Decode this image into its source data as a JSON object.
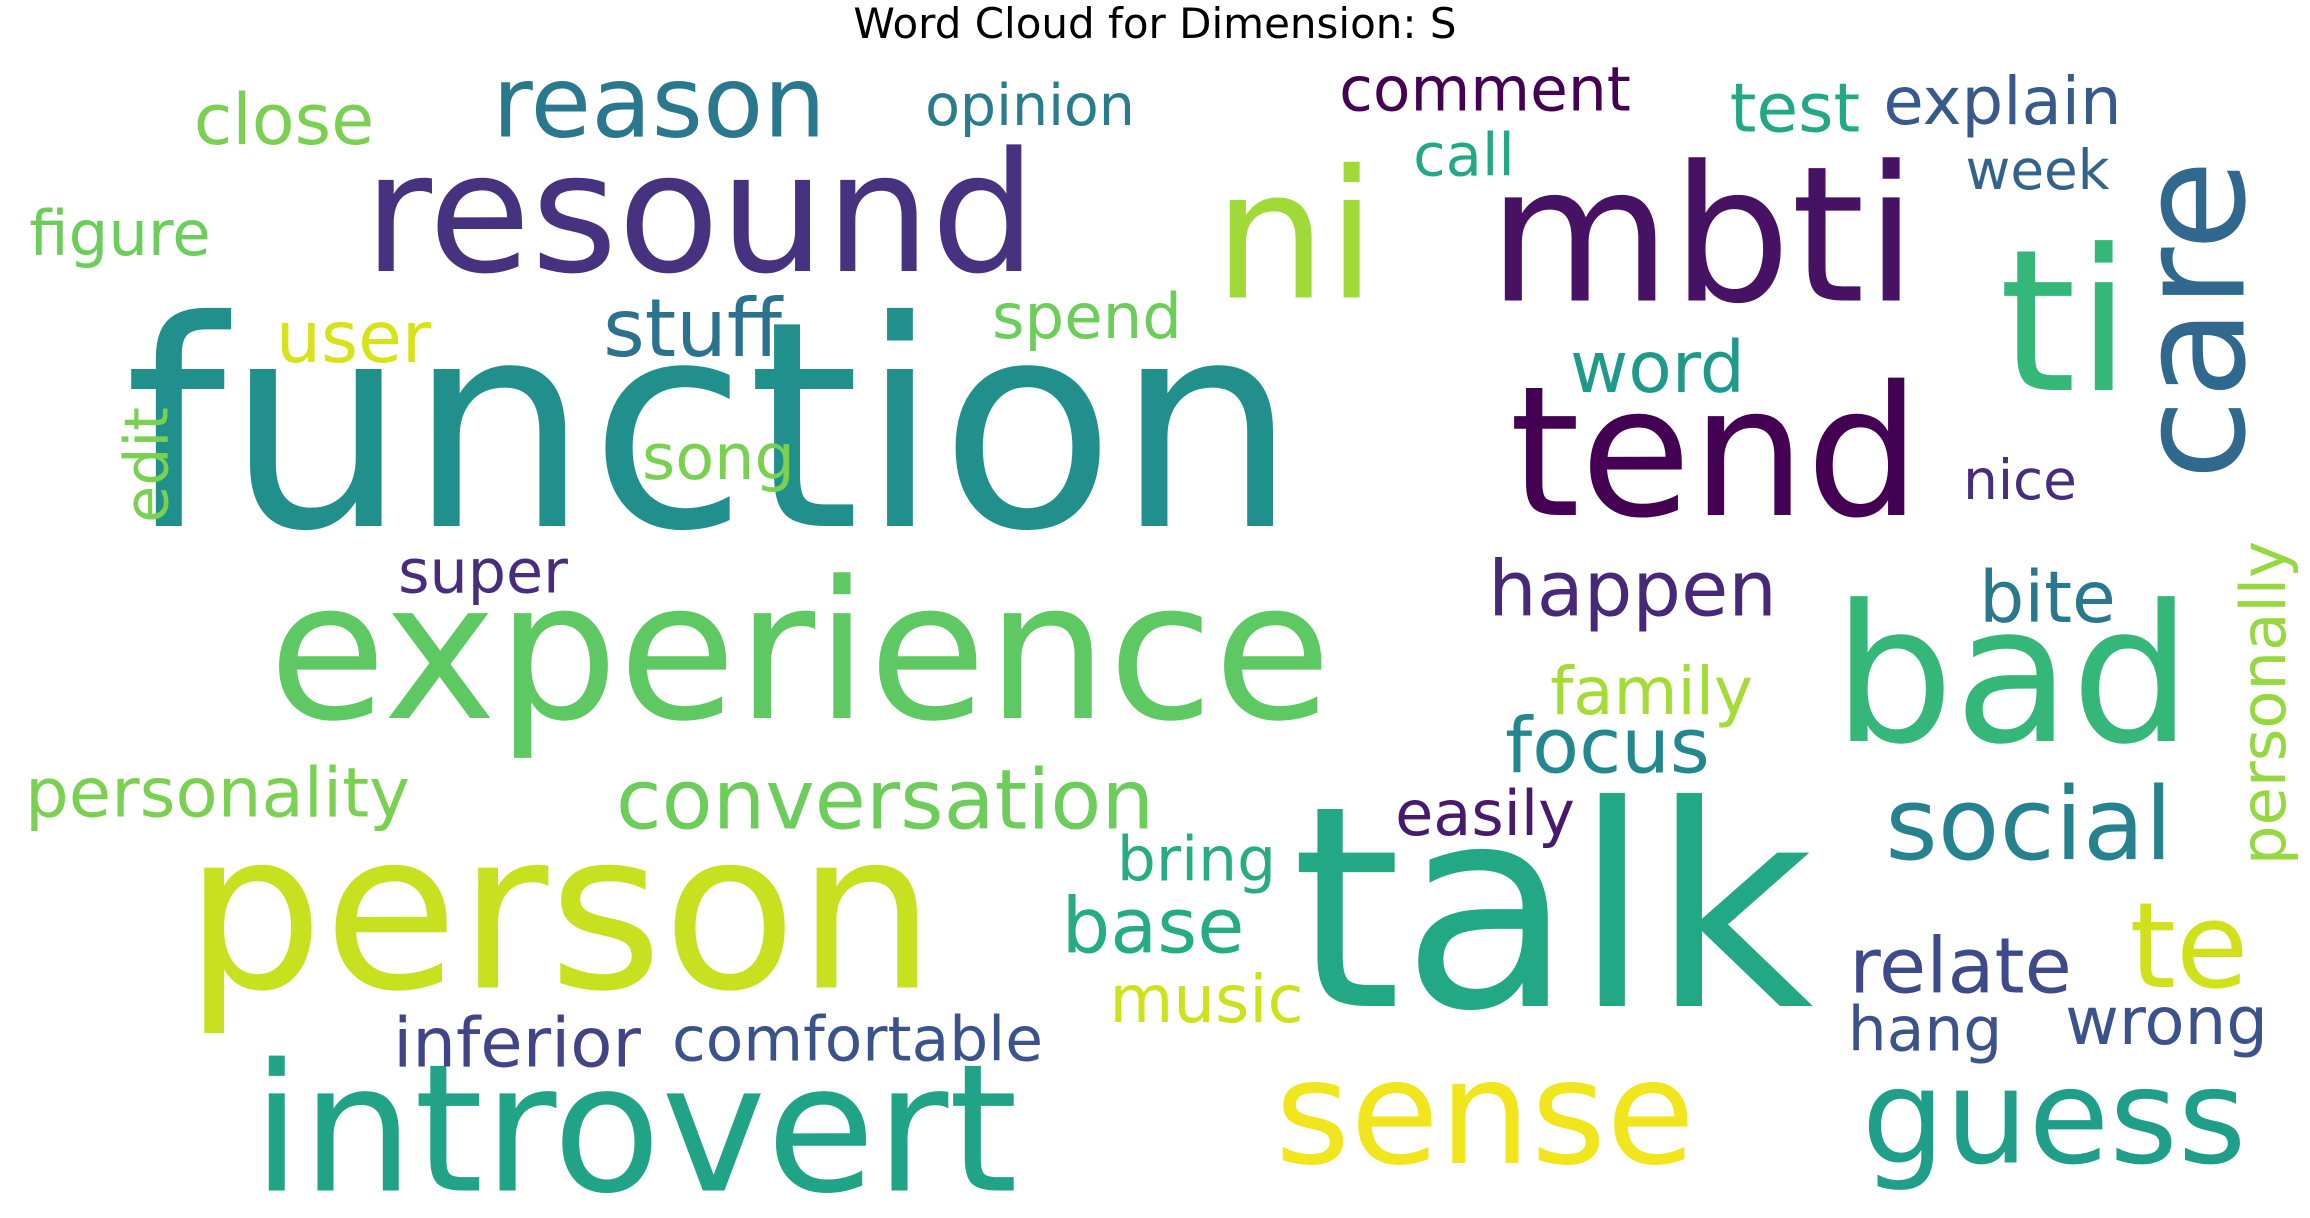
{
  "title": "Word Cloud for Dimension: S",
  "words": [
    {
      "text": "function",
      "color": "#21908d"
    },
    {
      "text": "person",
      "color": "#c7e020"
    },
    {
      "text": "talk",
      "color": "#22a884"
    },
    {
      "text": "experience",
      "color": "#5ec962"
    },
    {
      "text": "introvert",
      "color": "#20a386"
    },
    {
      "text": "resound",
      "color": "#46327e"
    },
    {
      "text": "sense",
      "color": "#f1e51d"
    },
    {
      "text": "mbti",
      "color": "#471164"
    },
    {
      "text": "bad",
      "color": "#35b779"
    },
    {
      "text": "tend",
      "color": "#440154"
    },
    {
      "text": "guess",
      "color": "#1f9e89"
    },
    {
      "text": "ni",
      "color": "#a0da39"
    },
    {
      "text": "care",
      "color": "#31688e"
    },
    {
      "text": "ti",
      "color": "#35b779"
    },
    {
      "text": "reason",
      "color": "#2a788e"
    },
    {
      "text": "social",
      "color": "#26828e"
    },
    {
      "text": "te",
      "color": "#d0e11c"
    },
    {
      "text": "conversation",
      "color": "#6ccd5a"
    },
    {
      "text": "happen",
      "color": "#482878"
    },
    {
      "text": "stuff",
      "color": "#2c728e"
    },
    {
      "text": "focus",
      "color": "#23888e"
    },
    {
      "text": "test",
      "color": "#22a884"
    },
    {
      "text": "close",
      "color": "#7ad151"
    },
    {
      "text": "word",
      "color": "#1f9a8a"
    },
    {
      "text": "relate",
      "color": "#3e4a89"
    },
    {
      "text": "wrong",
      "color": "#3b528b"
    },
    {
      "text": "personality",
      "color": "#7ad151"
    },
    {
      "text": "opinion",
      "color": "#297b8e"
    },
    {
      "text": "comment",
      "color": "#440154"
    },
    {
      "text": "explain",
      "color": "#38598c"
    },
    {
      "text": "bite",
      "color": "#2a788e"
    },
    {
      "text": "base",
      "color": "#25ac82"
    },
    {
      "text": "user",
      "color": "#d8e219"
    },
    {
      "text": "comfortable",
      "color": "#3b528b"
    },
    {
      "text": "inferior",
      "color": "#414487"
    },
    {
      "text": "family",
      "color": "#a5db36"
    },
    {
      "text": "personally",
      "color": "#95d840"
    },
    {
      "text": "spend",
      "color": "#6ccd5a"
    },
    {
      "text": "figure",
      "color": "#6ccd5a"
    },
    {
      "text": "bring",
      "color": "#27ad81"
    },
    {
      "text": "music",
      "color": "#cde11d"
    },
    {
      "text": "call",
      "color": "#22a884"
    },
    {
      "text": "week",
      "color": "#33638d"
    },
    {
      "text": "song",
      "color": "#7ad151"
    },
    {
      "text": "nice",
      "color": "#472d7b"
    },
    {
      "text": "super",
      "color": "#472d7b"
    },
    {
      "text": "easily",
      "color": "#481a6c"
    },
    {
      "text": "hang",
      "color": "#3b528b"
    },
    {
      "text": "edit",
      "color": "#7ad151"
    }
  ]
}
